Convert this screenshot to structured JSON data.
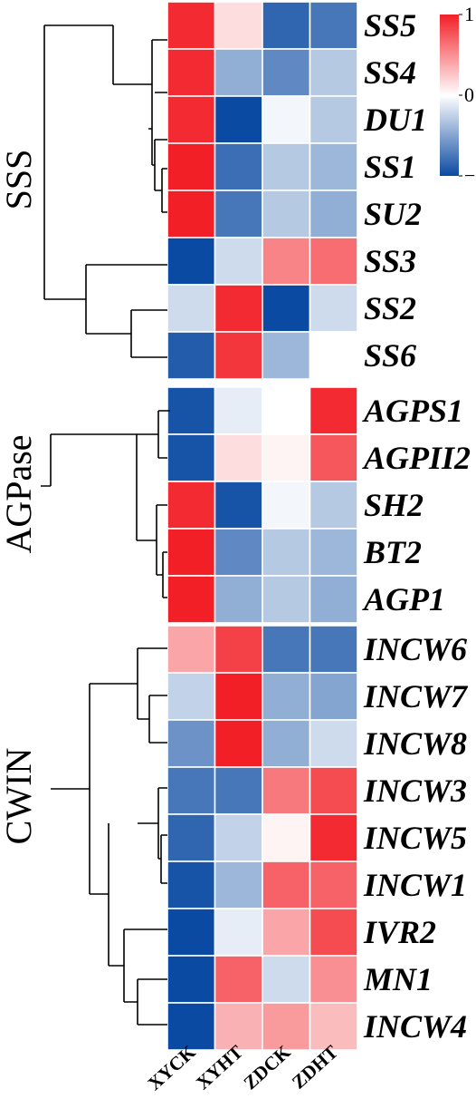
{
  "chart_data": {
    "type": "heatmap",
    "columns": [
      "XYCK",
      "XYHT",
      "ZDCK",
      "ZDHT"
    ],
    "color_scale": {
      "min": -1,
      "mid": 0,
      "max": 1,
      "ticks": [
        {
          "value": 1,
          "label": "1"
        },
        {
          "value": 0,
          "label": "0"
        },
        {
          "value": -1,
          "label": "−1"
        }
      ],
      "colors": {
        "low": "#0b4aa2",
        "mid": "#ffffff",
        "high": "#f21f26"
      }
    },
    "groups": [
      {
        "name": "SSS",
        "rows": [
          {
            "gene": "SS5",
            "values": [
              0.95,
              0.15,
              -0.85,
              -0.75
            ]
          },
          {
            "gene": "SS4",
            "values": [
              0.95,
              -0.45,
              -0.65,
              -0.3
            ]
          },
          {
            "gene": "DU1",
            "values": [
              0.95,
              -1.0,
              -0.05,
              -0.3
            ]
          },
          {
            "gene": "SS1",
            "values": [
              1.0,
              -0.8,
              -0.3,
              -0.4
            ]
          },
          {
            "gene": "SU2",
            "values": [
              1.0,
              -0.75,
              -0.3,
              -0.45
            ]
          },
          {
            "gene": "SS3",
            "values": [
              -1.0,
              -0.2,
              0.55,
              0.65
            ]
          },
          {
            "gene": "SS2",
            "values": [
              -0.2,
              0.95,
              -1.0,
              -0.2
            ]
          },
          {
            "gene": "SS6",
            "values": [
              -0.9,
              0.9,
              -0.4,
              0.0
            ]
          }
        ]
      },
      {
        "name": "AGPase",
        "rows": [
          {
            "gene": "AGPS1",
            "values": [
              -0.95,
              -0.1,
              0.0,
              0.95
            ]
          },
          {
            "gene": "AGPII2",
            "values": [
              -0.95,
              0.15,
              0.05,
              0.75
            ]
          },
          {
            "gene": "SH2",
            "values": [
              0.95,
              -0.95,
              -0.05,
              -0.3
            ]
          },
          {
            "gene": "BT2",
            "values": [
              1.0,
              -0.65,
              -0.3,
              -0.4
            ]
          },
          {
            "gene": "AGP1",
            "values": [
              1.0,
              -0.45,
              -0.3,
              -0.45
            ]
          }
        ]
      },
      {
        "name": "CWIN",
        "rows": [
          {
            "gene": "INCW6",
            "values": [
              0.4,
              0.85,
              -0.75,
              -0.75
            ]
          },
          {
            "gene": "INCW7",
            "values": [
              -0.25,
              1.0,
              -0.45,
              -0.5
            ]
          },
          {
            "gene": "INCW8",
            "values": [
              -0.6,
              1.0,
              -0.45,
              -0.2
            ]
          },
          {
            "gene": "INCW3",
            "values": [
              -0.75,
              -0.75,
              0.6,
              0.8
            ]
          },
          {
            "gene": "INCW5",
            "values": [
              -0.85,
              -0.25,
              0.05,
              0.95
            ]
          },
          {
            "gene": "INCW1",
            "values": [
              -0.95,
              -0.4,
              0.7,
              0.7
            ]
          },
          {
            "gene": "IVR2",
            "values": [
              -1.0,
              -0.1,
              0.4,
              0.8
            ]
          },
          {
            "gene": "MN1",
            "values": [
              -1.0,
              0.7,
              -0.2,
              0.5
            ]
          },
          {
            "gene": "INCW4",
            "values": [
              -1.0,
              0.35,
              0.45,
              0.3
            ]
          }
        ]
      }
    ]
  }
}
